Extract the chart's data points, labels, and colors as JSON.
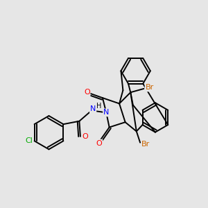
{
  "bg_color": "#e6e6e6",
  "bond_color": "#000000",
  "bond_width": 1.4,
  "atom_colors": {
    "O": "#ff0000",
    "N": "#0000ff",
    "Br": "#cc6600",
    "Cl": "#00aa00",
    "H": "#000000",
    "C": "#000000"
  },
  "fs": 7.5
}
